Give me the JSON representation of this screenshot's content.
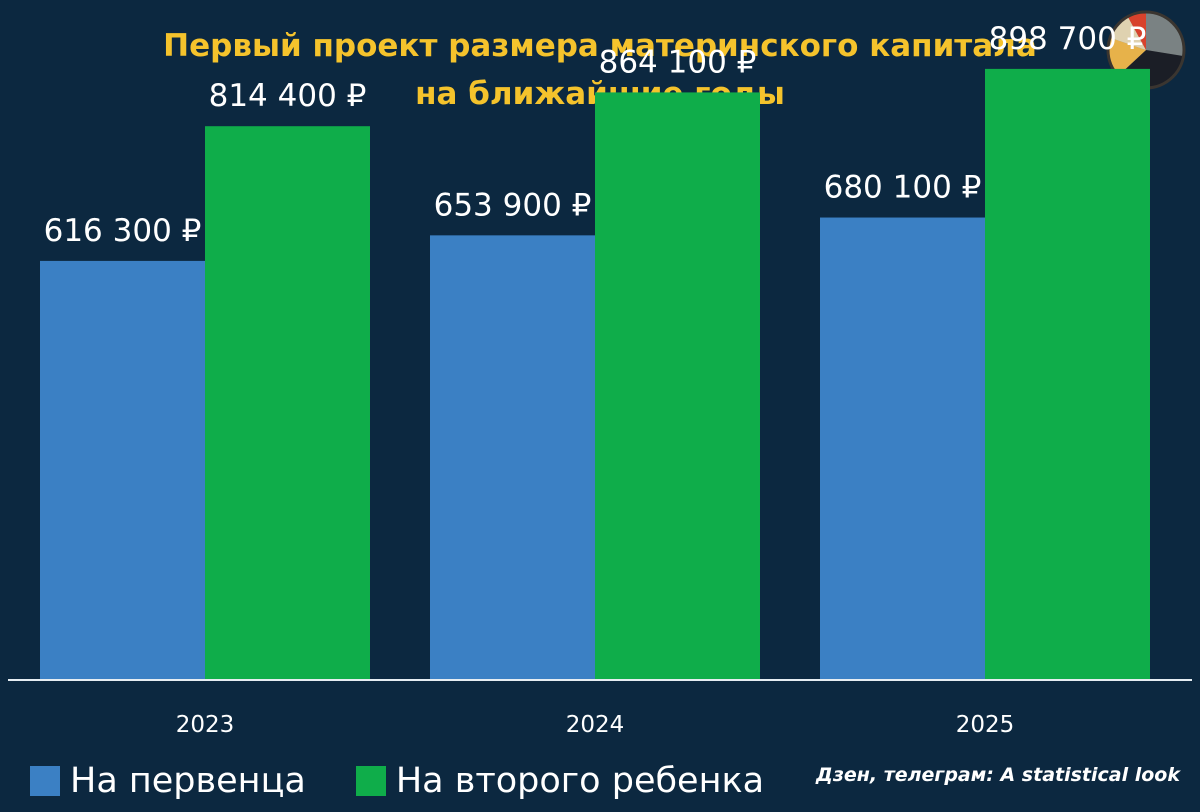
{
  "colors": {
    "background": "#0c2840",
    "title": "#f5c32c",
    "first_child": "#3b80c4",
    "second_child": "#0fad4a",
    "text": "#ffffff",
    "axis": "#e6edf2"
  },
  "source": "Дзен, телеграм: A statistical look",
  "logo_icon": "pie-chart-icon",
  "chart_data": {
    "type": "bar",
    "title": "Первый проект размера материнского капитала на ближайшие годы",
    "categories": [
      "2023",
      "2024",
      "2025"
    ],
    "series": [
      {
        "name": "На первенца",
        "color": "#3b80c4",
        "values": [
          616300,
          653900,
          680100
        ],
        "labels": [
          "616 300 ₽",
          "653 900 ₽",
          "680 100 ₽"
        ]
      },
      {
        "name": "На второго ребенка",
        "color": "#0fad4a",
        "values": [
          814400,
          864100,
          898700
        ],
        "labels": [
          "814 400 ₽",
          "864 100 ₽",
          "898 700 ₽"
        ]
      }
    ],
    "xlabel": "",
    "ylabel": "",
    "ylim": [
      0,
      1000000
    ],
    "grid": false,
    "legend": "bottom-left"
  }
}
